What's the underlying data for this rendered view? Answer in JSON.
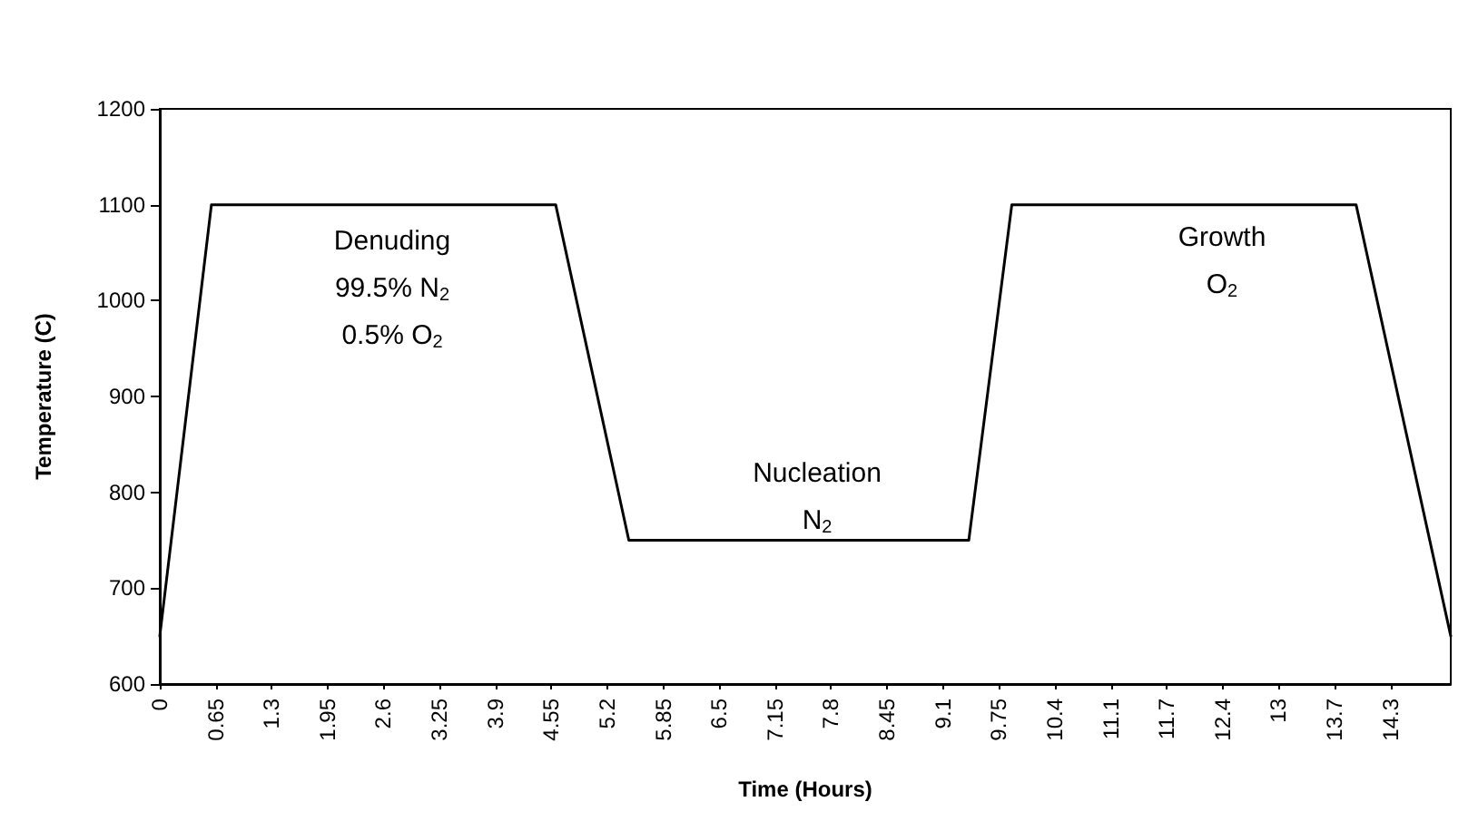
{
  "chart_data": {
    "type": "line",
    "xlabel": "Time (Hours)",
    "ylabel": "Temperature (C)",
    "x": [
      0,
      0.6,
      4.6,
      5.45,
      9.4,
      9.9,
      13.9,
      15
    ],
    "series": [
      {
        "color": "#000000",
        "values": [
          650,
          1100,
          1100,
          750,
          750,
          1100,
          1100,
          650
        ]
      }
    ],
    "xlim": [
      0,
      15
    ],
    "xticks": [
      0,
      0.65,
      1.3,
      1.95,
      2.6,
      3.25,
      3.9,
      4.55,
      5.2,
      5.85,
      6.5,
      7.15,
      7.8,
      8.45,
      9.1,
      9.75,
      10.4,
      {
        "value": 11.05,
        "label": "11.1"
      },
      11.7,
      {
        "value": 12.35,
        "label": "12.4"
      },
      13,
      {
        "value": 13.65,
        "label": "13.7"
      },
      {
        "value": 14.3,
        "label": "14.3"
      }
    ],
    "ylim": [
      600,
      1200
    ],
    "yticks": [
      600,
      700,
      800,
      900,
      1000,
      1100,
      1200
    ],
    "grid": false,
    "marker": "none",
    "line_style": "solid",
    "annotations": [
      "Denuding\n99.5% N$_{2}$\n0.5% O$_{2}$",
      "Nucleation\nN$_{2}$",
      "Growth\nO$_{2}$"
    ]
  }
}
